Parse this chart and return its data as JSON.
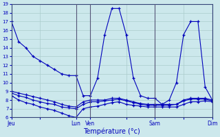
{
  "xlabel": "Température (°c)",
  "background_color": "#cce8ec",
  "grid_color": "#aacccc",
  "line_color": "#0000bb",
  "ylim": [
    6,
    19
  ],
  "xlim": [
    0,
    28
  ],
  "yticks": [
    6,
    7,
    8,
    9,
    10,
    11,
    12,
    13,
    14,
    15,
    16,
    17,
    18,
    19
  ],
  "xtick_labels": [
    "Jeu",
    "",
    "Lun",
    "Ven",
    "",
    "Sam",
    "",
    "Dim"
  ],
  "xtick_positions": [
    0,
    4,
    9,
    11,
    16,
    20,
    24,
    28
  ],
  "vlines": [
    9,
    11,
    20,
    28
  ],
  "lines": [
    {
      "x": [
        0,
        1,
        2,
        3,
        4,
        5,
        6,
        7,
        8,
        9,
        10,
        11,
        12,
        13,
        14,
        15,
        16,
        17,
        18,
        19,
        20,
        21,
        22,
        23,
        24,
        25,
        26,
        27,
        28
      ],
      "y": [
        17,
        14.7,
        14.0,
        13.0,
        12.5,
        12.0,
        11.5,
        11.0,
        10.8,
        10.8,
        8.5,
        8.5,
        10.5,
        15.5,
        18.5,
        18.5,
        15.5,
        10.5,
        8.5,
        8.2,
        8.2,
        7.5,
        8.0,
        10.0,
        15.5,
        17.0,
        17.0,
        9.5,
        8.0
      ]
    },
    {
      "x": [
        0,
        1,
        2,
        3,
        4,
        5,
        6,
        7,
        8,
        9,
        10,
        11,
        12,
        13,
        14,
        15,
        16,
        17,
        18,
        19,
        20,
        21,
        22,
        23,
        24,
        25,
        26,
        27,
        28
      ],
      "y": [
        9.0,
        8.8,
        8.6,
        8.4,
        8.2,
        8.0,
        7.8,
        7.5,
        7.3,
        7.2,
        7.8,
        8.0,
        8.0,
        8.0,
        8.2,
        8.2,
        8.0,
        7.8,
        7.6,
        7.5,
        7.5,
        7.5,
        7.5,
        7.5,
        8.0,
        8.2,
        8.2,
        8.2,
        8.0
      ]
    },
    {
      "x": [
        0,
        1,
        2,
        3,
        4,
        5,
        6,
        7,
        8,
        9,
        10,
        11,
        12,
        13,
        14,
        15,
        16,
        17,
        18,
        19,
        20,
        21,
        22,
        23,
        24,
        25,
        26,
        27,
        28
      ],
      "y": [
        8.8,
        8.5,
        8.3,
        8.0,
        7.8,
        7.6,
        7.5,
        7.2,
        7.1,
        7.0,
        7.5,
        7.8,
        7.8,
        7.9,
        8.0,
        8.1,
        7.9,
        7.7,
        7.5,
        7.4,
        7.4,
        7.4,
        7.4,
        7.5,
        7.9,
        8.1,
        8.1,
        8.1,
        7.9
      ]
    },
    {
      "x": [
        0,
        1,
        2,
        3,
        4,
        5,
        6,
        7,
        8,
        9,
        10,
        11,
        12,
        13,
        14,
        15,
        16,
        17,
        18,
        19,
        20,
        21,
        22,
        23,
        24,
        25,
        26,
        27,
        28
      ],
      "y": [
        8.5,
        8.0,
        7.7,
        7.5,
        7.2,
        7.0,
        6.8,
        6.5,
        6.2,
        6.0,
        7.0,
        7.2,
        7.3,
        7.5,
        7.7,
        7.8,
        7.5,
        7.4,
        7.3,
        7.2,
        7.2,
        7.2,
        7.2,
        7.2,
        7.5,
        7.8,
        7.8,
        7.9,
        7.8
      ]
    }
  ]
}
